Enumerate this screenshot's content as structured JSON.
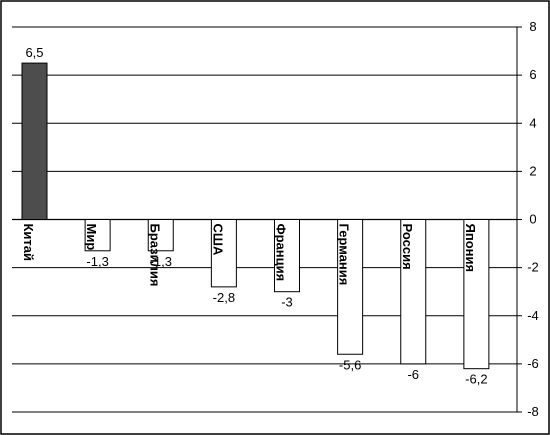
{
  "chart_data": {
    "type": "bar",
    "title": "",
    "xlabel": "",
    "ylabel": "",
    "categories": [
      "Китай",
      "Мир",
      "Бразилия",
      "США",
      "Франция",
      "Германия",
      "Россия",
      "Япония"
    ],
    "values": [
      6.5,
      -1.3,
      -1.3,
      -2.8,
      -3,
      -5.6,
      -6,
      -6.2
    ],
    "data_labels": [
      "6,5",
      "-1,3",
      "-1,3",
      "-2,8",
      "-3",
      "-5,6",
      "-6",
      "-6,2"
    ],
    "ylim": [
      -8,
      8
    ],
    "yticks": [
      8,
      6,
      4,
      2,
      0,
      -2,
      -4,
      -6,
      -8
    ],
    "ytick_labels": [
      "8",
      "6",
      "4",
      "2",
      "0",
      "-2",
      "-4",
      "-6",
      "-8"
    ],
    "y_axis_position": "right",
    "grid": true,
    "legend": "none",
    "colors": {
      "highlight_bar": "#4d4d4d",
      "bar": "#ffffff",
      "bar_stroke": "#000000",
      "grid": "#000000",
      "border": "#000000"
    }
  }
}
